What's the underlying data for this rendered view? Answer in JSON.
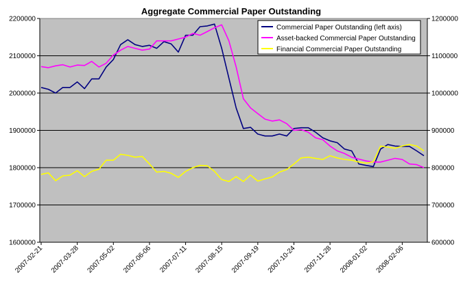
{
  "chart_data": {
    "type": "line",
    "title": "Aggregate Commercial Paper Outstanding",
    "grid": true,
    "legend_position": "top-right",
    "y_left": {
      "min": 1600000,
      "max": 2200000,
      "step": 100000,
      "ticks": [
        "1600000",
        "1700000",
        "1800000",
        "1900000",
        "2000000",
        "2100000",
        "2200000"
      ]
    },
    "y_right": {
      "min": 600000,
      "max": 1200000,
      "step": 100000,
      "ticks": [
        "600000",
        "700000",
        "800000",
        "900000",
        "1000000",
        "1100000",
        "1200000"
      ]
    },
    "x_tick_labels": [
      "2007-02-21",
      "2007-03-28",
      "2007-05-02",
      "2007-06-06",
      "2007-07-11",
      "2007-08-15",
      "2007-09-19",
      "2007-10-24",
      "2007-11-28",
      "2008-01-02",
      "2008-02-06"
    ],
    "x_tick_index": [
      0,
      5,
      10,
      15,
      20,
      25,
      30,
      35,
      40,
      45,
      50
    ],
    "n_points": 54,
    "series": [
      {
        "name": "Commercial Paper Outstanding (left axis)",
        "axis": "left",
        "color": "#000080",
        "values": [
          2015000,
          2010000,
          2000000,
          2015000,
          2015000,
          2030000,
          2012000,
          2038000,
          2038000,
          2070000,
          2090000,
          2130000,
          2143000,
          2130000,
          2125000,
          2128000,
          2120000,
          2138000,
          2132000,
          2110000,
          2155000,
          2155000,
          2178000,
          2180000,
          2185000,
          2120000,
          2040000,
          1960000,
          1905000,
          1908000,
          1890000,
          1885000,
          1885000,
          1890000,
          1885000,
          1905000,
          1907000,
          1907000,
          1895000,
          1880000,
          1872000,
          1867000,
          1850000,
          1845000,
          1810000,
          1806000,
          1803000,
          1850000,
          1862000,
          1858000,
          1857000,
          1857000,
          1845000,
          1832000
        ]
      },
      {
        "name": "Asset-backed Commercial Paper Outstanding",
        "axis": "right",
        "color": "#ff00ff",
        "values": [
          1071000,
          1068000,
          1073000,
          1076000,
          1070000,
          1075000,
          1074000,
          1085000,
          1070000,
          1080000,
          1102000,
          1115000,
          1125000,
          1120000,
          1115000,
          1118000,
          1140000,
          1140000,
          1140000,
          1145000,
          1150000,
          1160000,
          1155000,
          1165000,
          1175000,
          1183000,
          1140000,
          1070000,
          985000,
          960000,
          945000,
          930000,
          925000,
          928000,
          918000,
          900000,
          902000,
          895000,
          880000,
          875000,
          858000,
          845000,
          838000,
          828000,
          823000,
          818000,
          815000,
          815000,
          820000,
          825000,
          822000,
          810000,
          808000,
          800000
        ]
      },
      {
        "name": "Financial Commercial Paper Outstanding",
        "axis": "right",
        "color": "#ffff00",
        "values": [
          782000,
          786000,
          765000,
          778000,
          780000,
          792000,
          776000,
          790000,
          796000,
          820000,
          820000,
          836000,
          833000,
          828000,
          830000,
          810000,
          788000,
          790000,
          785000,
          774000,
          790000,
          800000,
          806000,
          805000,
          790000,
          768000,
          763000,
          776000,
          763000,
          780000,
          764000,
          770000,
          775000,
          788000,
          795000,
          810000,
          826000,
          828000,
          825000,
          822000,
          832000,
          826000,
          822000,
          820000,
          815000,
          812000,
          816000,
          858000,
          855000,
          852000,
          858000,
          862000,
          858000,
          845000
        ]
      }
    ]
  }
}
